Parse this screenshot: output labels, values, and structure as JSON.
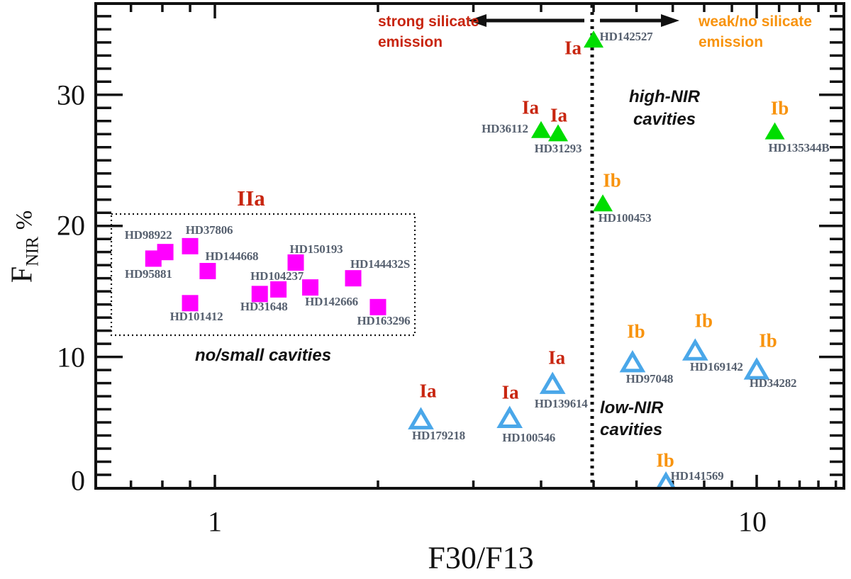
{
  "annotations": {
    "strong_silicate": {
      "line1": "strong silicate",
      "line2": "emission"
    },
    "weak_silicate": {
      "line1": "weak/no silicate",
      "line2": "emission"
    },
    "high_nir": {
      "line1": "high-NIR",
      "line2": "cavities"
    },
    "low_nir": {
      "line1": "low-NIR",
      "line2": "cavities"
    },
    "no_small": "no/small cavities",
    "group_IIa": "IIa",
    "silicate_divider": {
      "x_value": 5,
      "style": "vertical dotted line with left/right arrows"
    }
  },
  "axes": {
    "x_title": "F30/F13",
    "y_title_main": "F",
    "y_title_sub": "NIR",
    "y_title_unit": "%",
    "x_ticks": [
      {
        "label": "1",
        "value": 1,
        "dx": 0
      },
      {
        "label": "10",
        "value": 10,
        "dx": -6
      }
    ],
    "y_ticks": [
      {
        "label": "0",
        "value": 0,
        "dy": -11
      },
      {
        "label": "10",
        "value": 10,
        "dy": 0
      },
      {
        "label": "20",
        "value": 20,
        "dy": -1
      },
      {
        "label": "30",
        "value": 30,
        "dy": 0
      }
    ]
  },
  "colors": {
    "magenta": "#ff00ff",
    "green": "#00dd00",
    "blue": "#4aa7e9",
    "red_label": "#c8250f",
    "orange_label": "#f8930d",
    "hd_label": "#576170",
    "axis": "#111111"
  },
  "chart_data": {
    "type": "scatter",
    "title": "",
    "xlabel": "F30/F13",
    "ylabel": "F_NIR %",
    "x_axis": {
      "scale": "log",
      "lim": [
        0.6,
        14.5
      ],
      "major_ticks": [
        1,
        10
      ],
      "minor_ticks": [
        0.7,
        0.8,
        0.9,
        2,
        3,
        4,
        5,
        6,
        7,
        8,
        9,
        11,
        12,
        13,
        14
      ]
    },
    "y_axis": {
      "scale": "linear",
      "lim": [
        0,
        37
      ],
      "major_ticks": [
        0,
        10,
        20,
        30
      ],
      "minor_tick_step": 1
    },
    "grid": false,
    "legend": false,
    "divider_x": 5,
    "series": [
      {
        "name": "group IIa - no/small cavities",
        "marker": "filled-square",
        "color": "#ff00ff",
        "points": [
          {
            "name": "HD98922",
            "x": 0.81,
            "y": 18.0,
            "name_offset": [
              -24,
              -24
            ]
          },
          {
            "name": "HD95881",
            "x": 0.77,
            "y": 17.5,
            "name_offset": [
              -7,
              22
            ]
          },
          {
            "name": "HD37806",
            "x": 0.9,
            "y": 18.45,
            "name_offset": [
              27,
              -22
            ]
          },
          {
            "name": "HD144668",
            "x": 0.97,
            "y": 16.55,
            "name_offset": [
              34,
              -20
            ]
          },
          {
            "name": "HD101412",
            "x": 0.9,
            "y": 14.1,
            "name_offset": [
              9,
              19
            ]
          },
          {
            "name": "HD31648",
            "x": 1.21,
            "y": 14.8,
            "name_offset": [
              6,
              18
            ]
          },
          {
            "name": "HD104237",
            "x": 1.31,
            "y": 15.15,
            "name_offset": [
              -2,
              -18
            ]
          },
          {
            "name": "HD150193",
            "x": 1.41,
            "y": 17.2,
            "name_offset": [
              29,
              -18
            ]
          },
          {
            "name": "HD142666",
            "x": 1.5,
            "y": 15.3,
            "name_offset": [
              30,
              20
            ]
          },
          {
            "name": "HD144432S",
            "x": 1.8,
            "y": 16.0,
            "name_offset": [
              38,
              -20
            ]
          },
          {
            "name": "HD163296",
            "x": 2.0,
            "y": 13.8,
            "name_offset": [
              8,
              20
            ]
          }
        ]
      },
      {
        "name": "group I filled - high-NIR cavities",
        "marker": "filled-triangle",
        "color": "#00dd00",
        "points": [
          {
            "name": "HD142527",
            "x": 5.0,
            "y": 34.2,
            "group": "Ia",
            "name_offset": [
              46,
              -4
            ],
            "group_offset": [
              -29,
              12
            ]
          },
          {
            "name": "HD36112",
            "x": 4.0,
            "y": 27.3,
            "group": "Ia",
            "name_offset": [
              -51,
              -2
            ],
            "group_offset": [
              -15,
              -32
            ]
          },
          {
            "name": "HD31293",
            "x": 4.3,
            "y": 27.05,
            "group": "Ia",
            "name_offset": [
              0,
              22
            ],
            "group_offset": [
              1,
              -25
            ]
          },
          {
            "name": "HD135344B",
            "x": 10.8,
            "y": 27.2,
            "group": "Ib",
            "name_offset": [
              34,
              23
            ],
            "group_offset": [
              7,
              -33
            ]
          },
          {
            "name": "HD100453",
            "x": 5.2,
            "y": 21.7,
            "group": "Ib",
            "name_offset": [
              31,
              21
            ],
            "group_offset": [
              13,
              -32
            ]
          }
        ]
      },
      {
        "name": "group I open - low-NIR cavities",
        "marker": "open-triangle",
        "color": "#4aa7e9",
        "points": [
          {
            "name": "HD179218",
            "x": 2.4,
            "y": 5.2,
            "group": "Ia",
            "name_offset": [
              25,
              23
            ],
            "group_offset": [
              10,
              -40
            ]
          },
          {
            "name": "HD100546",
            "x": 3.5,
            "y": 5.3,
            "group": "Ia",
            "name_offset": [
              27,
              27
            ],
            "group_offset": [
              1,
              -37
            ]
          },
          {
            "name": "HD139614",
            "x": 4.2,
            "y": 7.9,
            "group": "Ia",
            "name_offset": [
              12,
              28
            ],
            "group_offset": [
              6,
              -37
            ]
          },
          {
            "name": "HD97048",
            "x": 5.9,
            "y": 9.55,
            "group": "Ib",
            "name_offset": [
              24,
              23
            ],
            "group_offset": [
              5,
              -44
            ]
          },
          {
            "name": "HD169142",
            "x": 7.7,
            "y": 10.45,
            "group": "Ib",
            "name_offset": [
              30,
              23
            ],
            "group_offset": [
              12,
              -42
            ]
          },
          {
            "name": "HD34282",
            "x": 10.0,
            "y": 9.0,
            "group": "Ib",
            "name_offset": [
              23,
              19
            ],
            "group_offset": [
              16,
              -41
            ]
          },
          {
            "name": "HD141569",
            "x": 6.8,
            "y": 0.3,
            "group": "Ib",
            "name_offset": [
              44,
              -11
            ],
            "group_offset": [
              -1,
              -33
            ]
          }
        ]
      }
    ]
  }
}
